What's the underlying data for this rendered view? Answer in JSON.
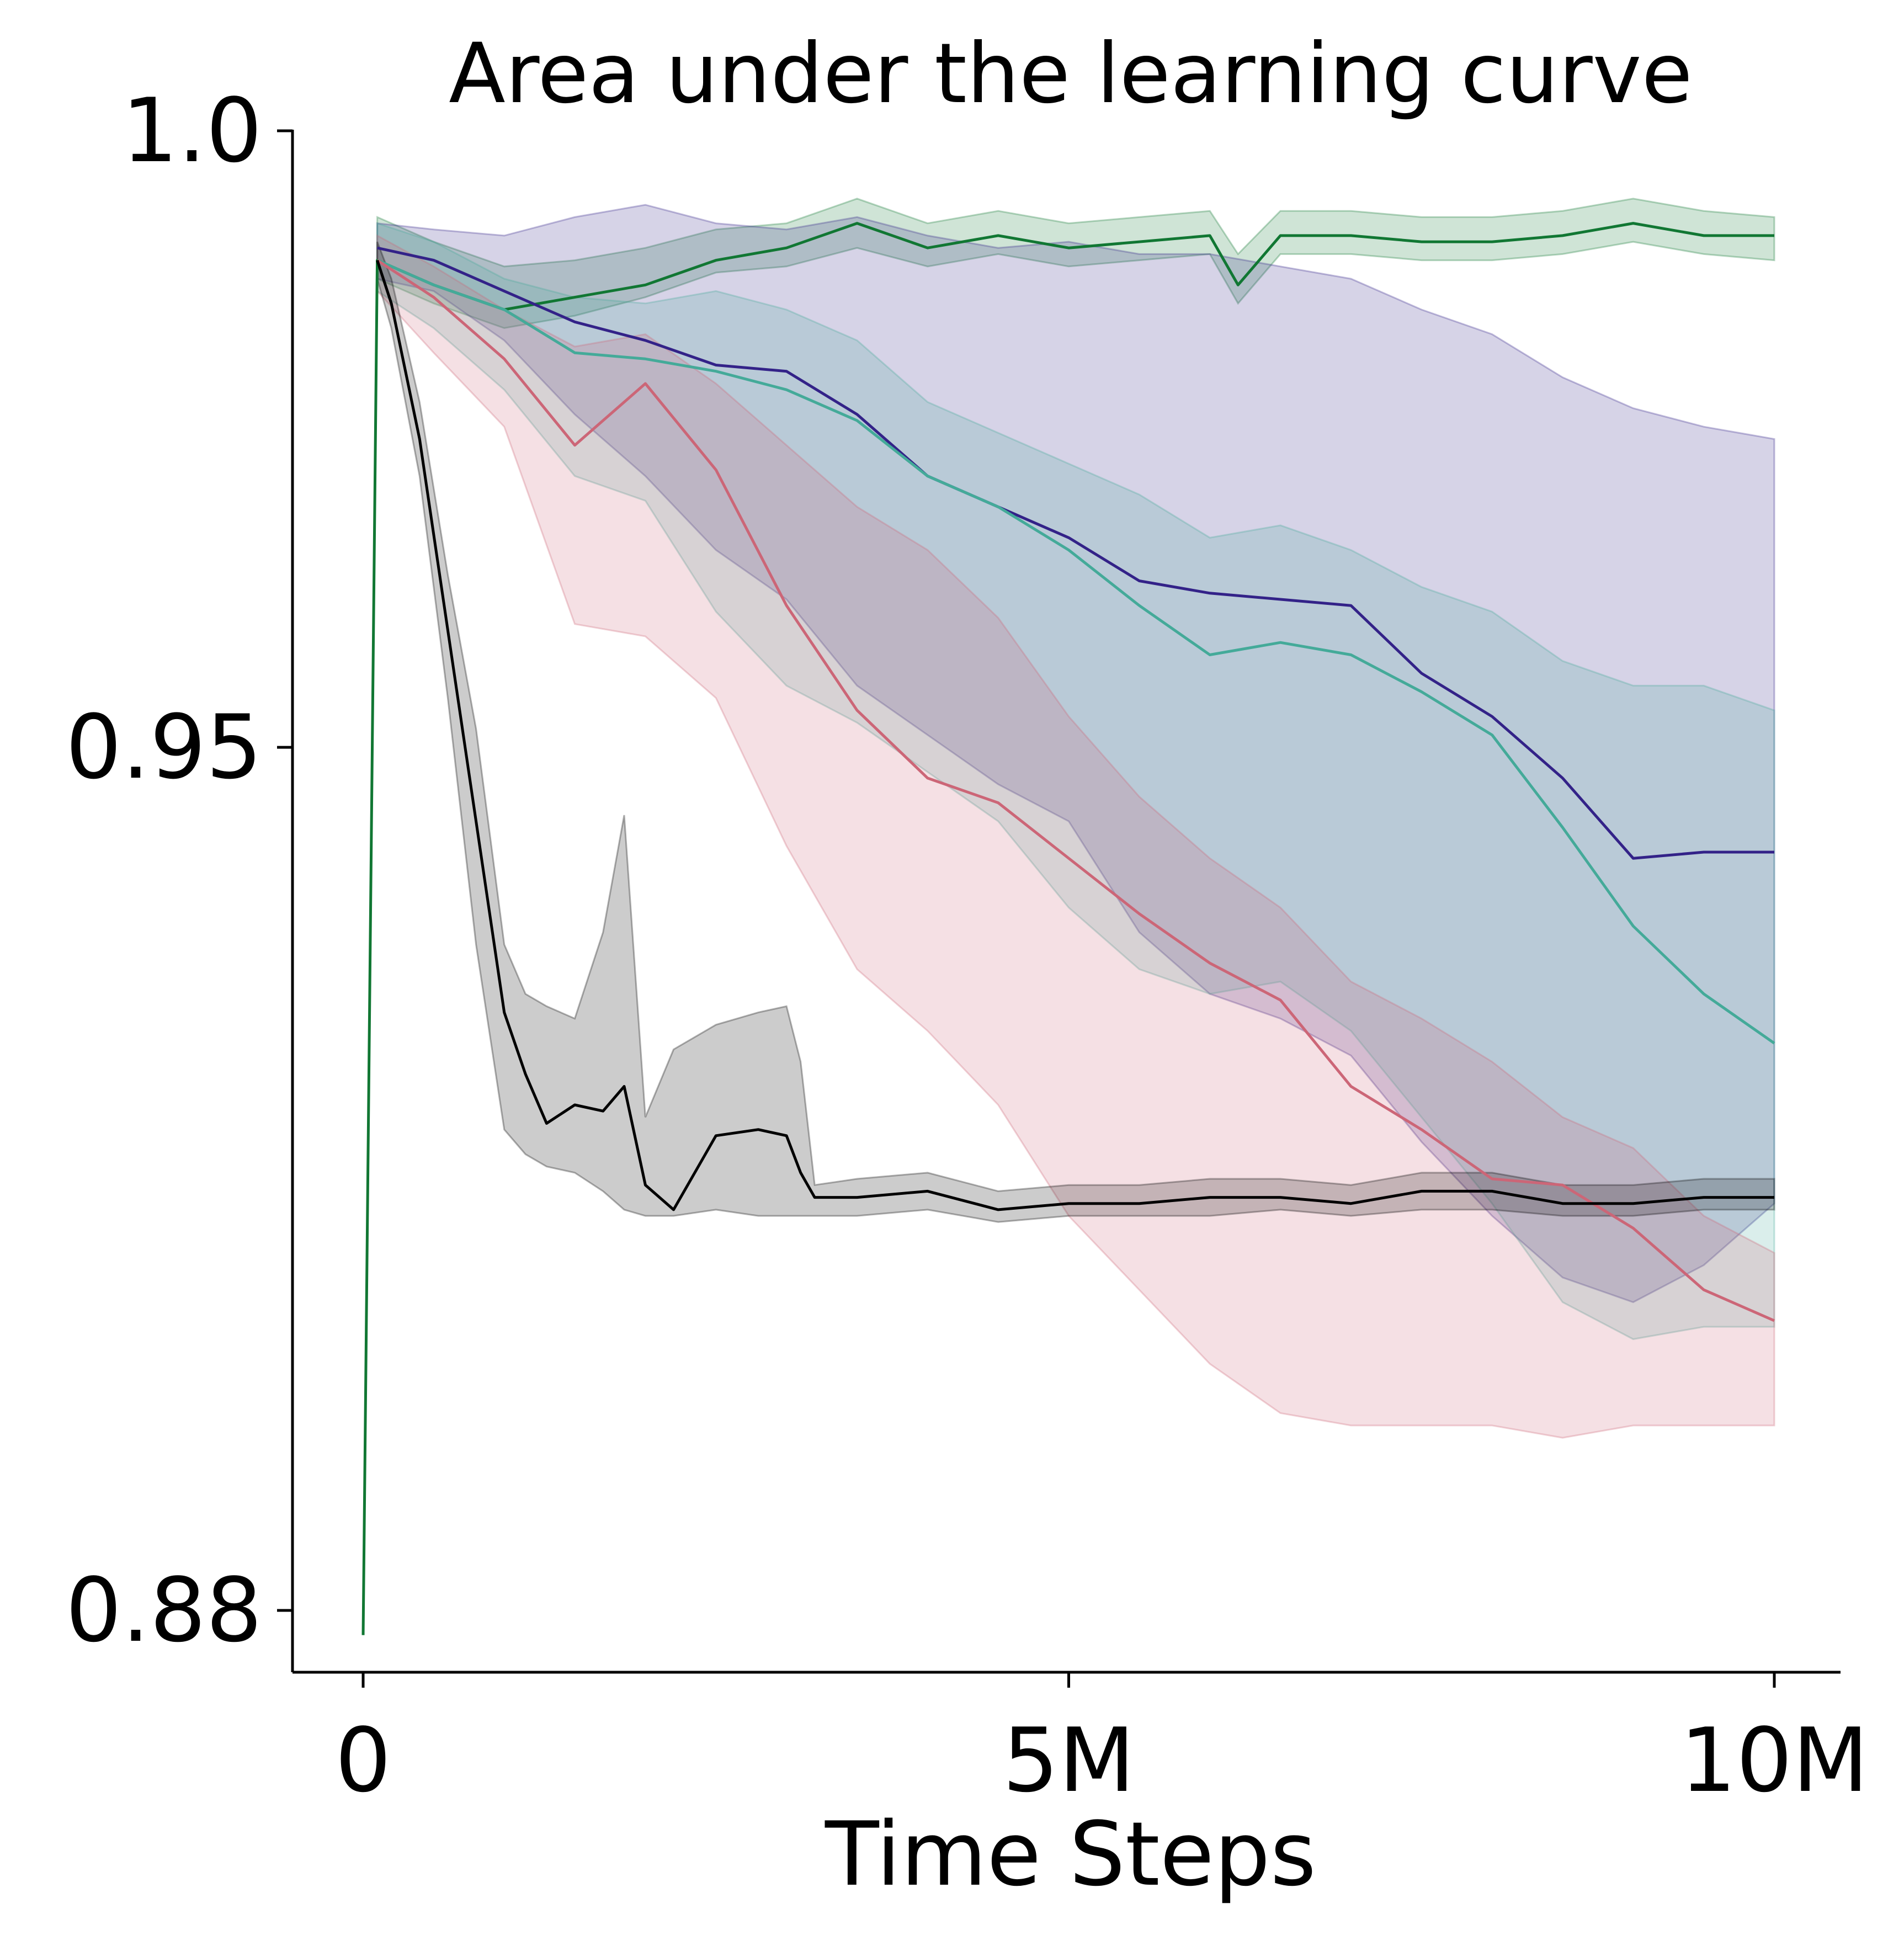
{
  "chart_data": {
    "type": "line",
    "title": "Area under the learning curve",
    "xlabel": "Time Steps",
    "ylabel": "",
    "xlim": [
      -500000,
      10500000
    ],
    "ylim": [
      0.875,
      1.0
    ],
    "x_ticks": [
      {
        "value": 0,
        "label": "0"
      },
      {
        "value": 5000000,
        "label": "5M"
      },
      {
        "value": 10000000,
        "label": "10M"
      }
    ],
    "y_ticks": [
      {
        "value": 1.0,
        "label": "1.0"
      },
      {
        "value": 0.95,
        "label": "0.95"
      },
      {
        "value": 0.88,
        "label": "0.88"
      }
    ],
    "grid": false,
    "legend": "none",
    "series": [
      {
        "color": "#117733",
        "x": [
          0,
          100000,
          500000,
          1000000,
          1500000,
          2000000,
          2500000,
          3000000,
          3500000,
          4000000,
          4500000,
          5000000,
          5500000,
          6000000,
          6200000,
          6500000,
          7000000,
          7500000,
          8000000,
          8500000,
          9000000,
          9500000,
          10000000
        ],
        "y": [
          0.878,
          0.9895,
          0.9875,
          0.9855,
          0.9865,
          0.9875,
          0.9895,
          0.9905,
          0.9925,
          0.9905,
          0.9915,
          0.9905,
          0.991,
          0.9915,
          0.9875,
          0.9915,
          0.9915,
          0.991,
          0.991,
          0.9915,
          0.9925,
          0.9915,
          0.9915
        ],
        "lower": [
          0.878,
          0.988,
          0.986,
          0.984,
          0.985,
          0.9865,
          0.9885,
          0.989,
          0.9905,
          0.989,
          0.99,
          0.989,
          0.9895,
          0.99,
          0.986,
          0.99,
          0.99,
          0.9895,
          0.9895,
          0.99,
          0.991,
          0.99,
          0.9895
        ],
        "upper": [
          0.878,
          0.993,
          0.991,
          0.989,
          0.9895,
          0.9905,
          0.992,
          0.9925,
          0.9945,
          0.9925,
          0.9935,
          0.9925,
          0.993,
          0.9935,
          0.99,
          0.9935,
          0.9935,
          0.993,
          0.993,
          0.9935,
          0.9945,
          0.9935,
          0.993
        ]
      },
      {
        "color": "#332288",
        "x": [
          100000,
          500000,
          1000000,
          1500000,
          2000000,
          2500000,
          3000000,
          3500000,
          4000000,
          4500000,
          5000000,
          5500000,
          6000000,
          6500000,
          7000000,
          7500000,
          8000000,
          8500000,
          9000000,
          9500000,
          10000000
        ],
        "y": [
          0.9905,
          0.9895,
          0.987,
          0.9845,
          0.983,
          0.981,
          0.9805,
          0.977,
          0.972,
          0.9695,
          0.967,
          0.9635,
          0.9625,
          0.962,
          0.9615,
          0.956,
          0.9525,
          0.9475,
          0.941,
          0.9415,
          0.9415
        ],
        "lower": [
          0.988,
          0.987,
          0.983,
          0.977,
          0.972,
          0.966,
          0.962,
          0.955,
          0.951,
          0.947,
          0.944,
          0.935,
          0.93,
          0.928,
          0.925,
          0.918,
          0.912,
          0.907,
          0.905,
          0.908,
          0.913
        ],
        "upper": [
          0.9925,
          0.992,
          0.9915,
          0.993,
          0.994,
          0.9925,
          0.992,
          0.993,
          0.9915,
          0.9905,
          0.991,
          0.99,
          0.99,
          0.989,
          0.988,
          0.9855,
          0.9835,
          0.98,
          0.9775,
          0.976,
          0.975
        ]
      },
      {
        "color": "#44AA99",
        "x": [
          100000,
          500000,
          1000000,
          1500000,
          2000000,
          2500000,
          3000000,
          3500000,
          4000000,
          4500000,
          5000000,
          5500000,
          6000000,
          6500000,
          7000000,
          7500000,
          8000000,
          8500000,
          9000000,
          9500000,
          10000000
        ],
        "y": [
          0.9895,
          0.9875,
          0.9855,
          0.982,
          0.9815,
          0.9805,
          0.979,
          0.9765,
          0.972,
          0.9695,
          0.966,
          0.9615,
          0.9575,
          0.9585,
          0.9575,
          0.9545,
          0.951,
          0.9435,
          0.9355,
          0.93,
          0.926
        ],
        "lower": [
          0.987,
          0.984,
          0.979,
          0.972,
          0.97,
          0.961,
          0.955,
          0.952,
          0.948,
          0.944,
          0.937,
          0.932,
          0.93,
          0.931,
          0.927,
          0.92,
          0.913,
          0.905,
          0.902,
          0.903,
          0.903
        ],
        "upper": [
          0.9925,
          0.991,
          0.988,
          0.9865,
          0.986,
          0.987,
          0.9855,
          0.983,
          0.978,
          0.9755,
          0.973,
          0.9705,
          0.967,
          0.968,
          0.966,
          0.963,
          0.961,
          0.957,
          0.955,
          0.955,
          0.953
        ]
      },
      {
        "color": "#CC6677",
        "x": [
          100000,
          500000,
          1000000,
          1500000,
          2000000,
          2500000,
          3000000,
          3500000,
          4000000,
          4500000,
          5000000,
          5500000,
          6000000,
          6500000,
          7000000,
          7500000,
          8000000,
          8500000,
          9000000,
          9500000,
          10000000
        ],
        "y": [
          0.9895,
          0.9865,
          0.9815,
          0.9745,
          0.9795,
          0.9725,
          0.9615,
          0.953,
          0.9475,
          0.9455,
          0.941,
          0.9365,
          0.9325,
          0.9295,
          0.9225,
          0.919,
          0.915,
          0.9145,
          0.911,
          0.906,
          0.9035
        ],
        "lower": [
          0.987,
          0.982,
          0.976,
          0.96,
          0.959,
          0.954,
          0.942,
          0.932,
          0.927,
          0.921,
          0.912,
          0.906,
          0.9,
          0.896,
          0.895,
          0.895,
          0.895,
          0.894,
          0.895,
          0.895,
          0.895
        ],
        "upper": [
          0.9915,
          0.989,
          0.9855,
          0.9825,
          0.9835,
          0.9795,
          0.9745,
          0.9695,
          0.966,
          0.9605,
          0.9525,
          0.946,
          0.941,
          0.937,
          0.931,
          0.928,
          0.9245,
          0.92,
          0.9175,
          0.912,
          0.909
        ]
      },
      {
        "color": "#000000",
        "x": [
          100000,
          200000,
          400000,
          600000,
          800000,
          1000000,
          1150000,
          1300000,
          1500000,
          1700000,
          1850000,
          2000000,
          2200000,
          2500000,
          2800000,
          3000000,
          3100000,
          3200000,
          3500000,
          4000000,
          4500000,
          5000000,
          5500000,
          6000000,
          6500000,
          7000000,
          7500000,
          8000000,
          8500000,
          9000000,
          9500000,
          10000000
        ],
        "y": [
          0.9895,
          0.986,
          0.975,
          0.9595,
          0.944,
          0.9285,
          0.9235,
          0.9195,
          0.921,
          0.9205,
          0.9225,
          0.9145,
          0.9125,
          0.9185,
          0.919,
          0.9185,
          0.9155,
          0.9135,
          0.9135,
          0.914,
          0.9125,
          0.913,
          0.913,
          0.9135,
          0.9135,
          0.913,
          0.914,
          0.914,
          0.913,
          0.913,
          0.9135,
          0.9135
        ],
        "lower": [
          0.988,
          0.984,
          0.972,
          0.954,
          0.934,
          0.919,
          0.917,
          0.916,
          0.9155,
          0.914,
          0.9125,
          0.912,
          0.912,
          0.9125,
          0.912,
          0.912,
          0.912,
          0.912,
          0.912,
          0.9125,
          0.9115,
          0.912,
          0.912,
          0.912,
          0.9125,
          0.912,
          0.9125,
          0.9125,
          0.912,
          0.912,
          0.9125,
          0.9125
        ],
        "upper": [
          0.991,
          0.988,
          0.978,
          0.964,
          0.9515,
          0.934,
          0.93,
          0.929,
          0.928,
          0.935,
          0.9445,
          0.92,
          0.9255,
          0.9275,
          0.9285,
          0.929,
          0.9245,
          0.9145,
          0.915,
          0.9155,
          0.914,
          0.9145,
          0.9145,
          0.915,
          0.915,
          0.9145,
          0.9155,
          0.9155,
          0.9145,
          0.9145,
          0.915,
          0.915
        ]
      }
    ]
  }
}
